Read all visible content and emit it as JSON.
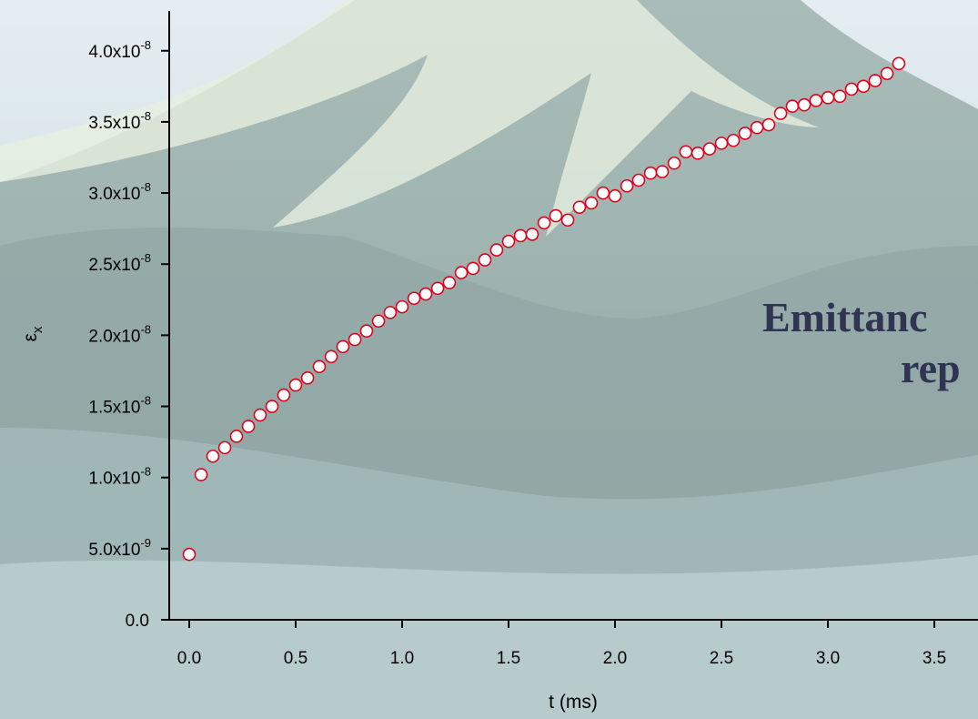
{
  "chart_data": {
    "type": "scatter",
    "xlabel": "t (ms)",
    "ylabel": "ε",
    "ylabel_sub": "x",
    "annotations": [
      "Emittanc",
      "rep"
    ],
    "marker_color": "#e0001a",
    "marker_fill": "#ffffff",
    "xlim": [
      -0.094,
      3.705
    ],
    "ylim": [
      0,
      4.28e-08
    ],
    "xticks": [
      {
        "value": 0,
        "label": "0.0"
      },
      0.5,
      {
        "value": 1,
        "label": "1.0"
      },
      1.5,
      {
        "value": 2,
        "label": "2.0"
      },
      2.5,
      {
        "value": 3,
        "label": "3.0"
      },
      3.5
    ],
    "yticks": [
      {
        "value": 0,
        "label": "0.0"
      },
      {
        "value": 5e-09,
        "label": "5.0x10",
        "exponent": "-9"
      },
      {
        "value": 1e-08,
        "label": "1.0x10",
        "exponent": "-8"
      },
      {
        "value": 1.5e-08,
        "label": "1.5x10",
        "exponent": "-8"
      },
      {
        "value": 2e-08,
        "label": "2.0x10",
        "exponent": "-8"
      },
      {
        "value": 2.5e-08,
        "label": "2.5x10",
        "exponent": "-8"
      },
      {
        "value": 3e-08,
        "label": "3.0x10",
        "exponent": "-8"
      },
      {
        "value": 3.5e-08,
        "label": "3.5x10",
        "exponent": "-8"
      },
      {
        "value": 4e-08,
        "label": "4.0x10",
        "exponent": "-8"
      }
    ],
    "x": [
      0,
      0.056,
      0.111,
      0.167,
      0.222,
      0.278,
      0.333,
      0.389,
      0.444,
      0.5,
      0.556,
      0.611,
      0.667,
      0.722,
      0.778,
      0.833,
      0.889,
      0.944,
      1.0,
      1.056,
      1.111,
      1.167,
      1.222,
      1.278,
      1.333,
      1.389,
      1.444,
      1.5,
      1.556,
      1.611,
      1.667,
      1.722,
      1.778,
      1.833,
      1.889,
      1.944,
      2.0,
      2.056,
      2.111,
      2.167,
      2.222,
      2.278,
      2.333,
      2.389,
      2.444,
      2.5,
      2.556,
      2.611,
      2.667,
      2.722,
      2.778,
      2.833,
      2.889,
      2.944,
      3.0,
      3.056,
      3.111,
      3.167,
      3.222,
      3.278,
      3.333
    ],
    "values": [
      4.6e-09,
      1.02e-08,
      1.15e-08,
      1.21e-08,
      1.29e-08,
      1.36e-08,
      1.44e-08,
      1.5e-08,
      1.58e-08,
      1.65e-08,
      1.7e-08,
      1.78e-08,
      1.85e-08,
      1.92e-08,
      1.97e-08,
      2.03e-08,
      2.1e-08,
      2.16e-08,
      2.2e-08,
      2.26e-08,
      2.29e-08,
      2.33e-08,
      2.37e-08,
      2.44e-08,
      2.47e-08,
      2.53e-08,
      2.6e-08,
      2.66e-08,
      2.7e-08,
      2.71e-08,
      2.79e-08,
      2.84e-08,
      2.81e-08,
      2.9e-08,
      2.93e-08,
      3e-08,
      2.98e-08,
      3.05e-08,
      3.09e-08,
      3.14e-08,
      3.15e-08,
      3.21e-08,
      3.29e-08,
      3.28e-08,
      3.31e-08,
      3.35e-08,
      3.37e-08,
      3.42e-08,
      3.46e-08,
      3.48e-08,
      3.56e-08,
      3.61e-08,
      3.62e-08,
      3.65e-08,
      3.67e-08,
      3.68e-08,
      3.73e-08,
      3.75e-08,
      3.79e-08,
      3.84e-08,
      3.91e-08
    ]
  }
}
